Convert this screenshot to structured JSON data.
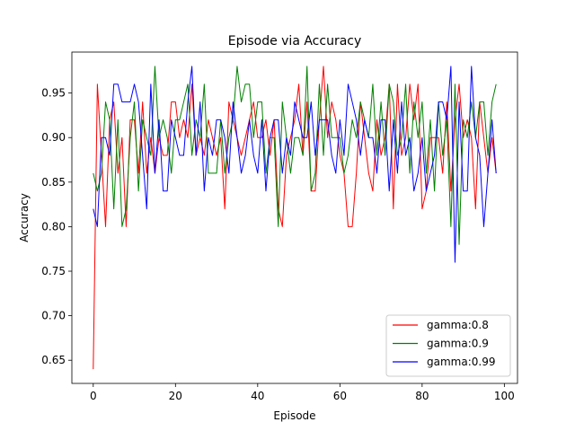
{
  "chart_data": {
    "type": "line",
    "title": "Episode via Accuracy",
    "xlabel": "Episode",
    "ylabel": "Accuracy",
    "xlim": [
      -5.2,
      103.2
    ],
    "ylim": [
      0.624,
      0.996
    ],
    "xticks": [
      0,
      20,
      40,
      60,
      80,
      100
    ],
    "xtick_labels": [
      "0",
      "20",
      "40",
      "60",
      "80",
      "100"
    ],
    "yticks": [
      0.65,
      0.7,
      0.75,
      0.8,
      0.85,
      0.9,
      0.95
    ],
    "ytick_labels": [
      "0.65",
      "0.70",
      "0.75",
      "0.80",
      "0.85",
      "0.90",
      "0.95"
    ],
    "legend_position": "lower-right",
    "grid": false,
    "series": [
      {
        "name": "gamma:0.8",
        "color": "#ff0000",
        "values": [
          0.64,
          0.96,
          0.88,
          0.8,
          0.92,
          0.94,
          0.86,
          0.9,
          0.8,
          0.92,
          0.92,
          0.86,
          0.94,
          0.86,
          0.9,
          0.86,
          0.9,
          0.88,
          0.88,
          0.94,
          0.94,
          0.9,
          0.92,
          0.9,
          0.96,
          0.88,
          0.9,
          0.88,
          0.92,
          0.9,
          0.88,
          0.9,
          0.82,
          0.94,
          0.92,
          0.9,
          0.88,
          0.9,
          0.92,
          0.94,
          0.9,
          0.9,
          0.92,
          0.88,
          0.92,
          0.82,
          0.8,
          0.88,
          0.9,
          0.92,
          0.96,
          0.88,
          0.94,
          0.84,
          0.84,
          0.92,
          0.98,
          0.9,
          0.94,
          0.92,
          0.88,
          0.86,
          0.8,
          0.8,
          0.86,
          0.94,
          0.9,
          0.86,
          0.84,
          0.92,
          0.88,
          0.9,
          0.96,
          0.82,
          0.96,
          0.88,
          0.9,
          0.96,
          0.92,
          0.96,
          0.82,
          0.84,
          0.9,
          0.9,
          0.9,
          0.86,
          0.94,
          0.84,
          0.92,
          0.96,
          0.9,
          0.92,
          0.9,
          0.82,
          0.94,
          0.9,
          0.86,
          0.9,
          0.86
        ]
      },
      {
        "name": "gamma:0.9",
        "color": "#008000",
        "values": [
          0.86,
          0.84,
          0.86,
          0.94,
          0.92,
          0.82,
          0.92,
          0.8,
          0.82,
          0.9,
          0.94,
          0.84,
          0.92,
          0.9,
          0.88,
          0.98,
          0.9,
          0.92,
          0.9,
          0.86,
          0.92,
          0.92,
          0.94,
          0.96,
          0.88,
          0.92,
          0.9,
          0.96,
          0.86,
          0.86,
          0.86,
          0.92,
          0.86,
          0.9,
          0.92,
          0.98,
          0.94,
          0.96,
          0.96,
          0.9,
          0.94,
          0.94,
          0.86,
          0.9,
          0.9,
          0.8,
          0.94,
          0.9,
          0.86,
          0.9,
          0.9,
          0.88,
          0.98,
          0.84,
          0.86,
          0.96,
          0.88,
          0.96,
          0.9,
          0.9,
          0.9,
          0.86,
          0.88,
          0.92,
          0.9,
          0.94,
          0.92,
          0.9,
          0.96,
          0.88,
          0.94,
          0.88,
          0.96,
          0.94,
          0.88,
          0.9,
          0.96,
          0.86,
          0.94,
          0.9,
          0.94,
          0.86,
          0.92,
          0.84,
          0.94,
          0.88,
          0.92,
          0.8,
          0.96,
          0.78,
          0.92,
          0.9,
          0.94,
          0.9,
          0.94,
          0.94,
          0.88,
          0.94,
          0.96
        ]
      },
      {
        "name": "gamma:0.99",
        "color": "#0000ff",
        "values": [
          0.82,
          0.8,
          0.9,
          0.9,
          0.88,
          0.96,
          0.96,
          0.94,
          0.94,
          0.94,
          0.96,
          0.94,
          0.88,
          0.82,
          0.96,
          0.86,
          0.92,
          0.84,
          0.84,
          0.92,
          0.9,
          0.88,
          0.88,
          0.94,
          0.98,
          0.88,
          0.94,
          0.84,
          0.9,
          0.88,
          0.92,
          0.92,
          0.9,
          0.86,
          0.94,
          0.9,
          0.86,
          0.88,
          0.92,
          0.88,
          0.86,
          0.92,
          0.84,
          0.9,
          0.92,
          0.92,
          0.86,
          0.9,
          0.88,
          0.94,
          0.92,
          0.9,
          0.9,
          0.94,
          0.88,
          0.92,
          0.92,
          0.92,
          0.88,
          0.86,
          0.92,
          0.88,
          0.96,
          0.94,
          0.92,
          0.88,
          0.92,
          0.9,
          0.9,
          0.86,
          0.92,
          0.92,
          0.84,
          0.92,
          0.86,
          0.94,
          0.88,
          0.9,
          0.84,
          0.86,
          0.9,
          0.84,
          0.86,
          0.88,
          0.94,
          0.94,
          0.92,
          0.98,
          0.76,
          0.94,
          0.84,
          0.84,
          0.98,
          0.9,
          0.88,
          0.8,
          0.86,
          0.92,
          0.86
        ]
      }
    ]
  }
}
